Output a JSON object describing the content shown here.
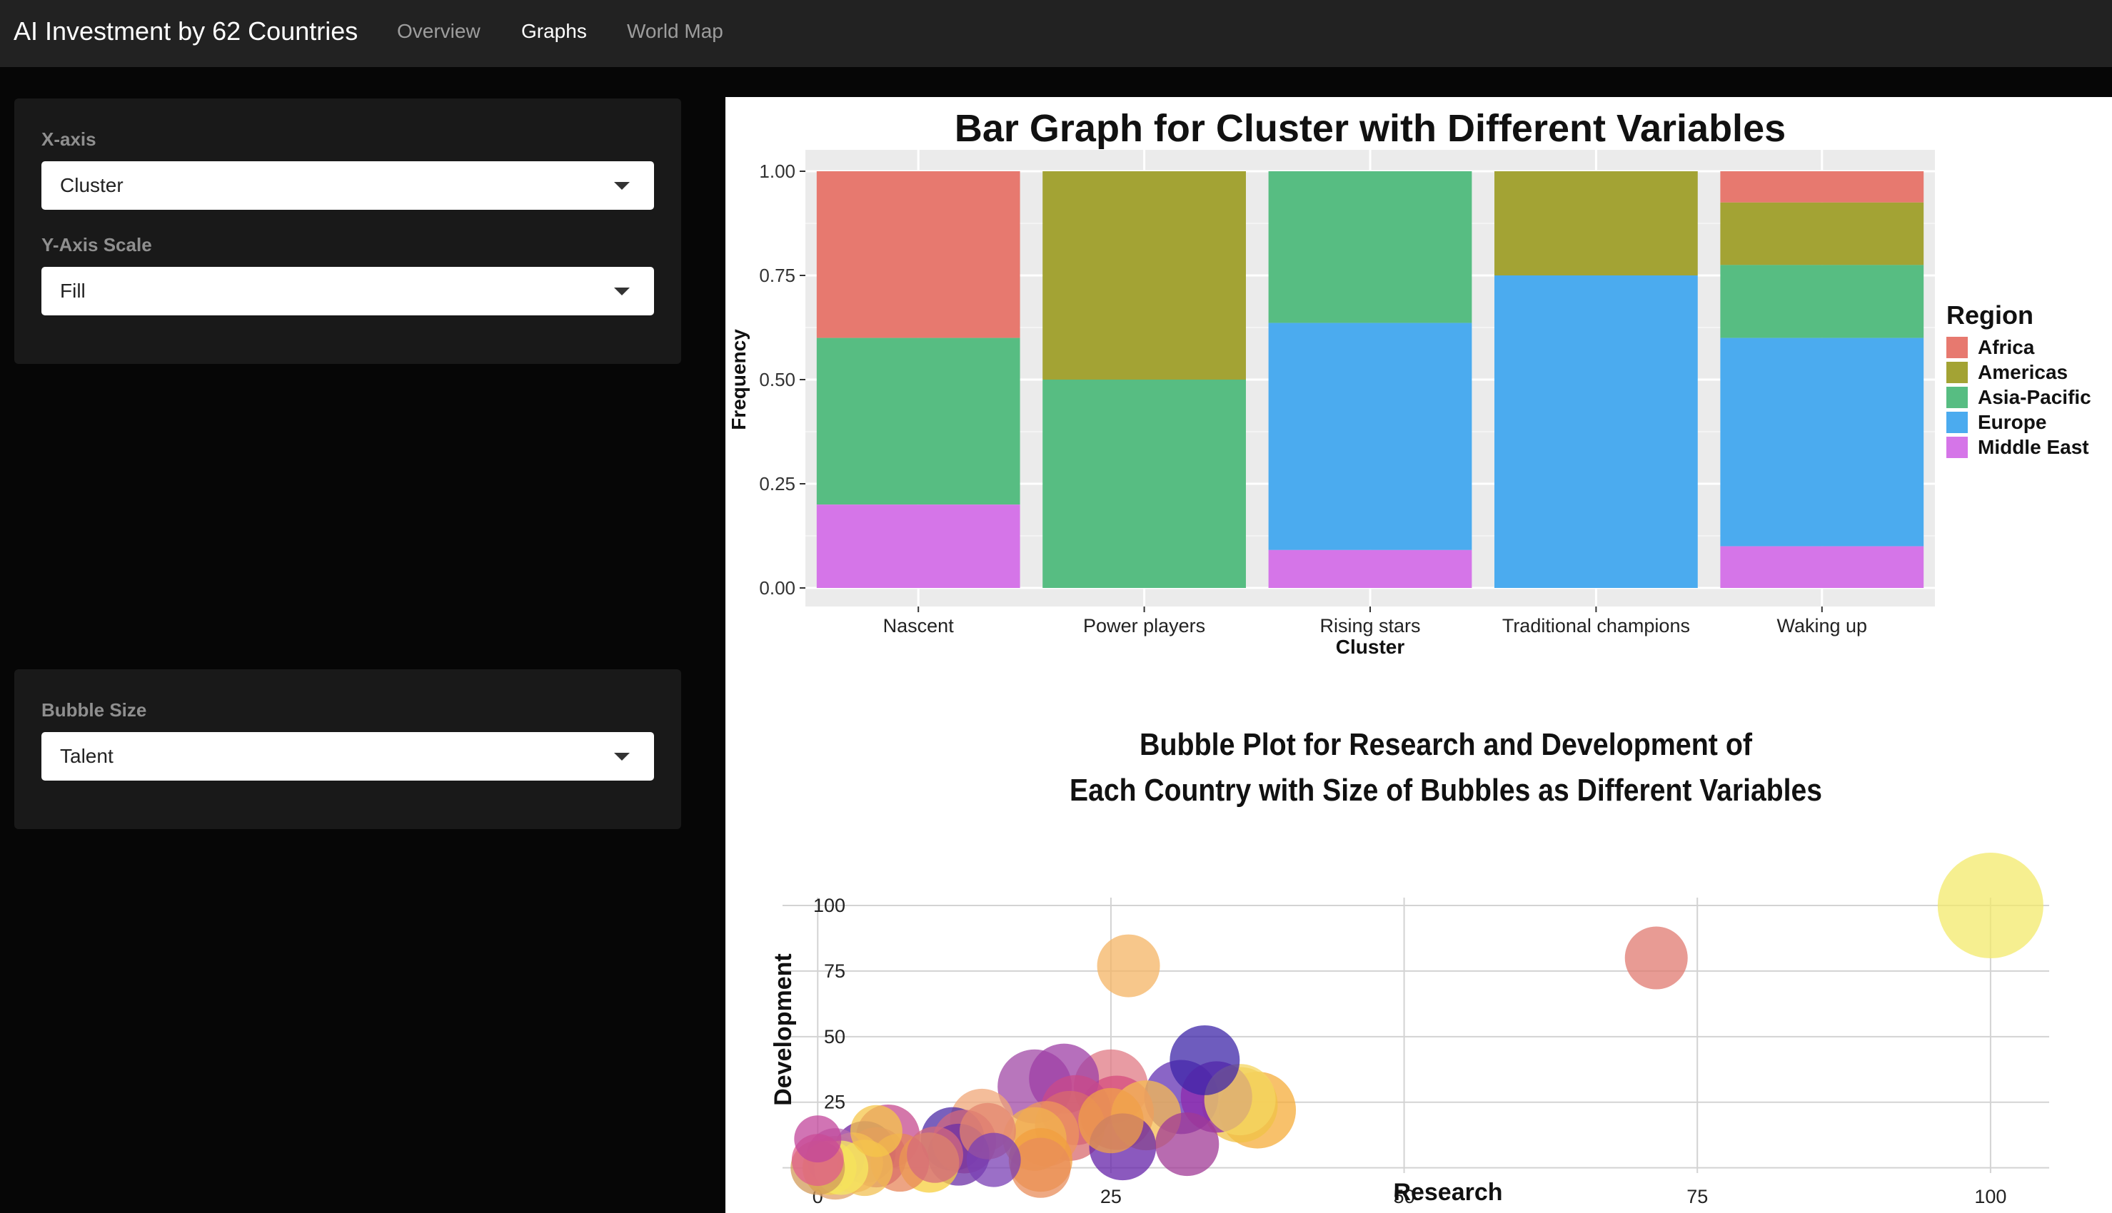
{
  "app": {
    "title": "AI Investment by 62 Countries",
    "tabs": [
      {
        "label": "Overview",
        "active": false
      },
      {
        "label": "Graphs",
        "active": true
      },
      {
        "label": "World Map",
        "active": false
      }
    ]
  },
  "sidebar": {
    "xaxis": {
      "label": "X-axis",
      "value": "Cluster"
    },
    "yscale": {
      "label": "Y-Axis Scale",
      "value": "Fill"
    },
    "bubble": {
      "label": "Bubble Size",
      "value": "Talent"
    }
  },
  "chart_data": [
    {
      "type": "bar",
      "stacked": "fill",
      "title": "Bar Graph for Cluster with Different Variables",
      "xlabel": "Cluster",
      "ylabel": "Frequency",
      "ylim": [
        0,
        1
      ],
      "yticks": [
        "0.00",
        "0.25",
        "0.50",
        "0.75",
        "1.00"
      ],
      "categories": [
        "Nascent",
        "Power players",
        "Rising stars",
        "Traditional champions",
        "Waking up"
      ],
      "legend": {
        "title": "Region",
        "position": "right"
      },
      "series": [
        {
          "name": "Africa",
          "color": "#E7796F",
          "values": [
            0.4,
            0,
            0,
            0,
            0.075
          ]
        },
        {
          "name": "Americas",
          "color": "#A3A334",
          "values": [
            0,
            0.5,
            0,
            0.25,
            0.15
          ]
        },
        {
          "name": "Asia-Pacific",
          "color": "#57BD82",
          "values": [
            0.4,
            0.5,
            0.364,
            0,
            0.175
          ]
        },
        {
          "name": "Europe",
          "color": "#4BABEF",
          "values": [
            0,
            0,
            0.545,
            0.75,
            0.5
          ]
        },
        {
          "name": "Middle East",
          "color": "#D575E8",
          "values": [
            0.2,
            0,
            0.091,
            0,
            0.1
          ]
        }
      ]
    },
    {
      "type": "scatter",
      "title_lines": [
        "Bubble Plot for Research and Development of",
        "Each Country with Size of Bubbles as Different Variables"
      ],
      "xlabel": "Research",
      "ylabel": "Development",
      "xlim": [
        -3,
        105
      ],
      "ylim": [
        -2,
        103
      ],
      "xticks": [
        0,
        25,
        50,
        75,
        100
      ],
      "yticks": [
        0,
        25,
        50,
        75,
        100
      ],
      "grid": true,
      "points": [
        {
          "x": 100,
          "y": 100,
          "size": 100,
          "color": "#F3EA6B"
        },
        {
          "x": 71.5,
          "y": 80,
          "size": 25,
          "color": "#E07A70"
        },
        {
          "x": 26.5,
          "y": 77,
          "size": 25,
          "color": "#F4B464"
        },
        {
          "x": 33,
          "y": 41,
          "size": 34,
          "color": "#3D25A8"
        },
        {
          "x": 18.5,
          "y": 31,
          "size": 40,
          "color": "#A048A6"
        },
        {
          "x": 21,
          "y": 34,
          "size": 34,
          "color": "#9D3FA5"
        },
        {
          "x": 25,
          "y": 31,
          "size": 40,
          "color": "#E07A84"
        },
        {
          "x": 31,
          "y": 27,
          "size": 40,
          "color": "#6331B3"
        },
        {
          "x": 34,
          "y": 27,
          "size": 36,
          "color": "#8E2AAE"
        },
        {
          "x": 36,
          "y": 24,
          "size": 42,
          "color": "#F0C246"
        },
        {
          "x": 37.5,
          "y": 22,
          "size": 44,
          "color": "#F5AC3A"
        },
        {
          "x": 36,
          "y": 26,
          "size": 36,
          "color": "#F4D662"
        },
        {
          "x": 22,
          "y": 22,
          "size": 34,
          "color": "#C94A8A"
        },
        {
          "x": 25.5,
          "y": 21,
          "size": 40,
          "color": "#D54C7E"
        },
        {
          "x": 25,
          "y": 18,
          "size": 28,
          "color": "#F0A048"
        },
        {
          "x": 28,
          "y": 20,
          "size": 34,
          "color": "#F6BC52"
        },
        {
          "x": 21.5,
          "y": 16,
          "size": 34,
          "color": "#D86A6E"
        },
        {
          "x": 19.5,
          "y": 13,
          "size": 28,
          "color": "#EF955C"
        },
        {
          "x": 26,
          "y": 8,
          "size": 30,
          "color": "#6422A8"
        },
        {
          "x": 31.5,
          "y": 9,
          "size": 26,
          "color": "#A03A96"
        },
        {
          "x": 18.5,
          "y": 11,
          "size": 26,
          "color": "#F1B34D"
        },
        {
          "x": 19,
          "y": 3,
          "size": 26,
          "color": "#F19F3F"
        },
        {
          "x": 19,
          "y": 0,
          "size": 22,
          "color": "#E88C5A"
        },
        {
          "x": 14,
          "y": 18,
          "size": 26,
          "color": "#F0A778"
        },
        {
          "x": 11.5,
          "y": 11,
          "size": 26,
          "color": "#4C2BA6"
        },
        {
          "x": 12.5,
          "y": 10,
          "size": 26,
          "color": "#D2687E"
        },
        {
          "x": 12,
          "y": 5,
          "size": 24,
          "color": "#6B2FA5"
        },
        {
          "x": 15,
          "y": 3,
          "size": 16,
          "color": "#7A3FB4"
        },
        {
          "x": 14.5,
          "y": 14,
          "size": 18,
          "color": "#E3856E"
        },
        {
          "x": 6,
          "y": 12,
          "size": 26,
          "color": "#C54A8E"
        },
        {
          "x": 5,
          "y": 14,
          "size": 14,
          "color": "#F5C649"
        },
        {
          "x": 4,
          "y": 6,
          "size": 24,
          "color": "#6E1F9C"
        },
        {
          "x": 5,
          "y": 4,
          "size": 22,
          "color": "#B3328F"
        },
        {
          "x": 7,
          "y": 2,
          "size": 20,
          "color": "#E7865A"
        },
        {
          "x": 9.5,
          "y": 2,
          "size": 22,
          "color": "#F7CF3D"
        },
        {
          "x": 10,
          "y": 5,
          "size": 18,
          "color": "#D46A7C"
        },
        {
          "x": 1.5,
          "y": 4,
          "size": 20,
          "color": "#B86BB0"
        },
        {
          "x": 3,
          "y": 2,
          "size": 22,
          "color": "#F2A66A"
        },
        {
          "x": 1.5,
          "y": 0,
          "size": 26,
          "color": "#E0A06A"
        },
        {
          "x": 1,
          "y": 0,
          "size": 16,
          "color": "#F4D04A"
        },
        {
          "x": 4,
          "y": 0,
          "size": 18,
          "color": "#F2C053"
        },
        {
          "x": 2,
          "y": 0,
          "size": 16,
          "color": "#F5EA62"
        },
        {
          "x": 0,
          "y": 3,
          "size": 14,
          "color": "#E05E8A"
        },
        {
          "x": 0,
          "y": 11,
          "size": 10,
          "color": "#C2469B"
        },
        {
          "x": 0,
          "y": 0,
          "size": 16,
          "color": "#D19B5A"
        }
      ]
    }
  ]
}
